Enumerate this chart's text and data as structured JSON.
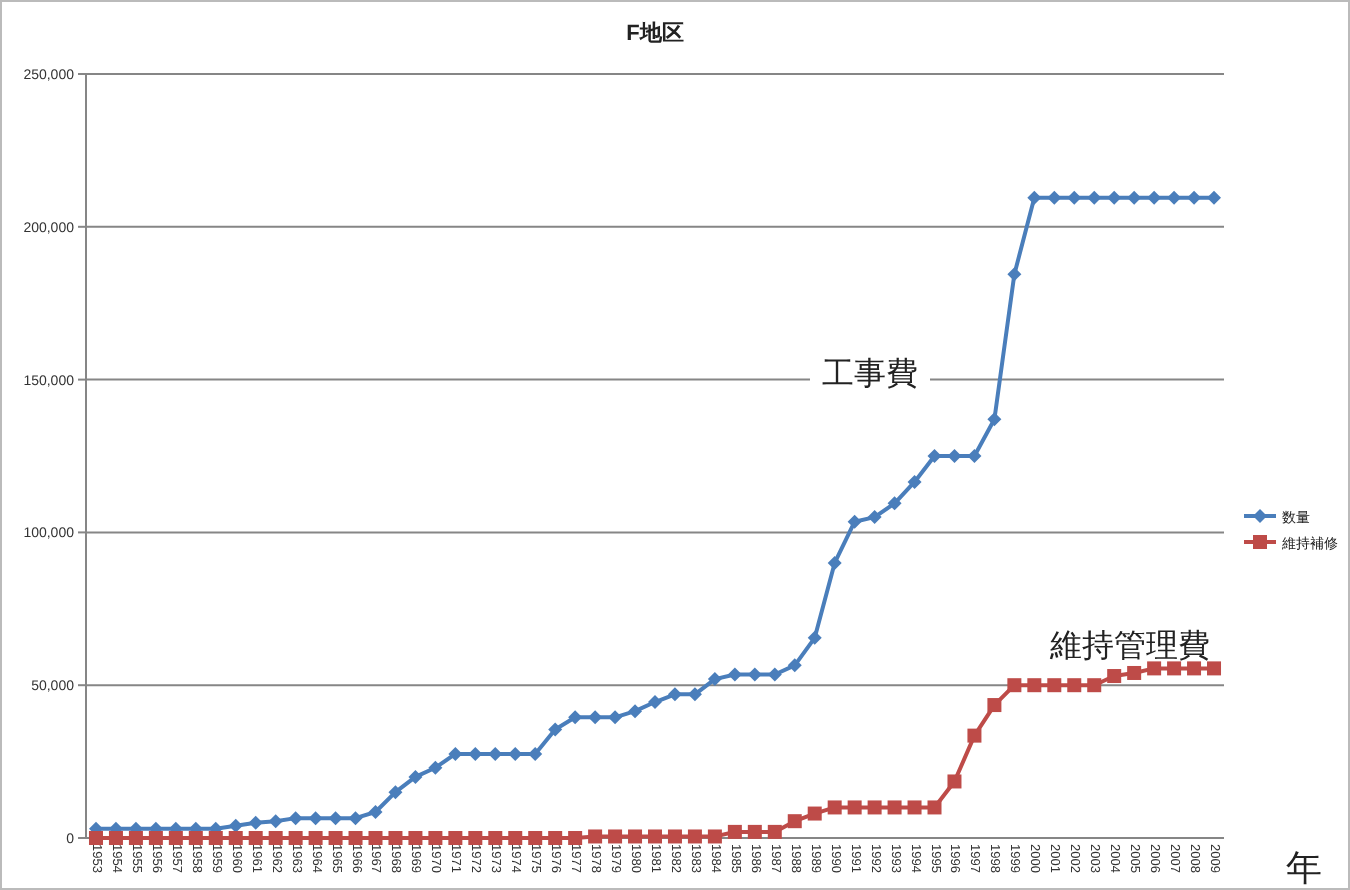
{
  "chart_data": {
    "type": "line",
    "title": "F地区",
    "xlabel": "年",
    "categories": [
      "1953",
      "1954",
      "1955",
      "1956",
      "1957",
      "1958",
      "1959",
      "1960",
      "1961",
      "1962",
      "1963",
      "1964",
      "1965",
      "1966",
      "1967",
      "1968",
      "1969",
      "1970",
      "1971",
      "1972",
      "1973",
      "1974",
      "1975",
      "1976",
      "1977",
      "1978",
      "1979",
      "1980",
      "1981",
      "1982",
      "1983",
      "1984",
      "1985",
      "1986",
      "1987",
      "1988",
      "1989",
      "1990",
      "1991",
      "1992",
      "1993",
      "1994",
      "1995",
      "1996",
      "1997",
      "1998",
      "1999",
      "2000",
      "2001",
      "2002",
      "2003",
      "2004",
      "2005",
      "2006",
      "2007",
      "2008",
      "2009"
    ],
    "series": [
      {
        "name": "数量",
        "color": "#4a7ebb",
        "marker": "diamond",
        "values": [
          3000,
          3000,
          3000,
          3000,
          3000,
          3000,
          3000,
          4000,
          5000,
          5500,
          6500,
          6500,
          6500,
          6500,
          8500,
          15000,
          20000,
          23000,
          27500,
          27500,
          27500,
          27500,
          27500,
          35500,
          39500,
          39500,
          39500,
          41500,
          44500,
          47000,
          47000,
          52000,
          53500,
          53500,
          53500,
          56500,
          65500,
          90000,
          103500,
          105000,
          109500,
          116500,
          125000,
          125000,
          125000,
          137000,
          184500,
          209500,
          209500,
          209500,
          209500,
          209500,
          209500,
          209500,
          209500,
          209500,
          209500
        ]
      },
      {
        "name": "維持補修",
        "color": "#be4b48",
        "marker": "square",
        "values": [
          0,
          0,
          0,
          0,
          0,
          0,
          0,
          0,
          0,
          0,
          0,
          0,
          0,
          0,
          0,
          0,
          0,
          0,
          0,
          0,
          0,
          0,
          0,
          0,
          0,
          500,
          500,
          500,
          500,
          500,
          500,
          500,
          2000,
          2000,
          2000,
          5500,
          8000,
          10000,
          10000,
          10000,
          10000,
          10000,
          10000,
          18500,
          33500,
          43500,
          50000,
          50000,
          50000,
          50000,
          50000,
          53000,
          54000,
          55500,
          55500,
          55500,
          55500
        ]
      }
    ],
    "ylim": [
      0,
      250000
    ],
    "yticks": [
      0,
      {
        "value": 50000,
        "label": "50,000"
      },
      {
        "value": 100000,
        "label": "100,000"
      },
      {
        "value": 150000,
        "label": "150,000"
      },
      {
        "value": 200000,
        "label": "200,000"
      },
      {
        "value": 250000,
        "label": "250,000"
      }
    ],
    "grid": "y",
    "legend": "right",
    "annotations": [
      "工事費",
      "維持管理費"
    ]
  }
}
